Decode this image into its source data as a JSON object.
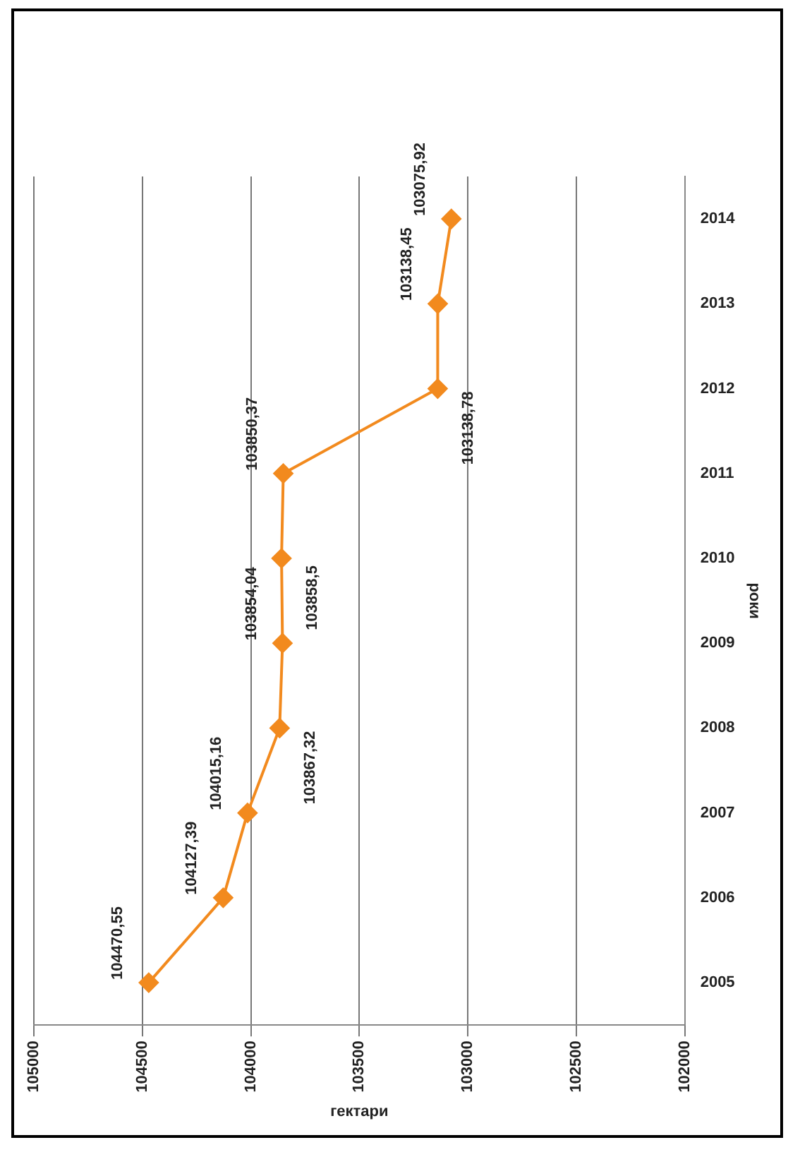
{
  "chart_data": {
    "type": "line",
    "orientation": "horizontal",
    "xlabel": "гектари",
    "ylabel": "роки",
    "categories": [
      "2014",
      "2013",
      "2012",
      "2011",
      "2010",
      "2009",
      "2008",
      "2007",
      "2006",
      "2005"
    ],
    "series": [
      {
        "color": "#f28a1e",
        "values": [
          103075.92,
          103138.45,
          103138.78,
          103850.37,
          103858.5,
          103854.04,
          103867.32,
          104015.16,
          104127.39,
          104470.55
        ],
        "value_labels": [
          "103075,92",
          "103138,45",
          "103138,78",
          "103850,37",
          "103858,5",
          "103854,04",
          "103867,32",
          "104015,16",
          "104127,39",
          "104470,55"
        ]
      }
    ],
    "xlim": [
      105000,
      102000
    ],
    "xticks": [
      105000,
      104500,
      104000,
      103500,
      103000,
      102500,
      102000
    ],
    "grid": "x",
    "legend": false,
    "marker": "diamond",
    "line_style": "solid"
  }
}
